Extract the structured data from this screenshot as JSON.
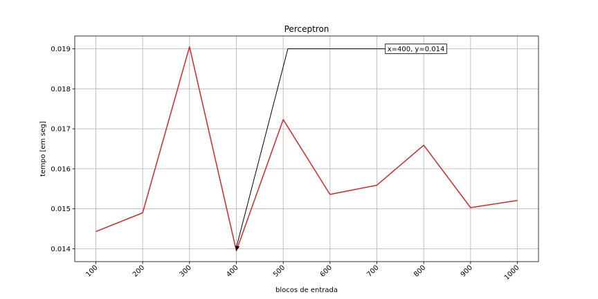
{
  "chart_data": {
    "type": "line",
    "title": "Perceptron",
    "xlabel": "blocos de entrada",
    "ylabel": "tempo [em seg]",
    "x": [
      100,
      200,
      300,
      400,
      500,
      600,
      700,
      800,
      900,
      1000
    ],
    "series": [
      {
        "values": [
          0.01443,
          0.0149,
          0.01905,
          0.01395,
          0.01723,
          0.01536,
          0.01559,
          0.01659,
          0.01503,
          0.01521
        ],
        "color": "#d62728"
      }
    ],
    "xticks": [
      "100",
      "200",
      "300",
      "400",
      "500",
      "600",
      "700",
      "800",
      "900",
      "1000"
    ],
    "yticks": [
      "0.014",
      "0.015",
      "0.016",
      "0.017",
      "0.018",
      "0.019"
    ],
    "ytick_values": [
      0.014,
      0.015,
      0.016,
      0.017,
      0.018,
      0.019
    ],
    "xlim": [
      55,
      1045
    ],
    "ylim": [
      0.01368,
      0.01932
    ],
    "grid": true,
    "annotation": {
      "text": "x=400, y=0.014",
      "point": [
        400,
        0.01395
      ],
      "color": "#000000"
    }
  }
}
